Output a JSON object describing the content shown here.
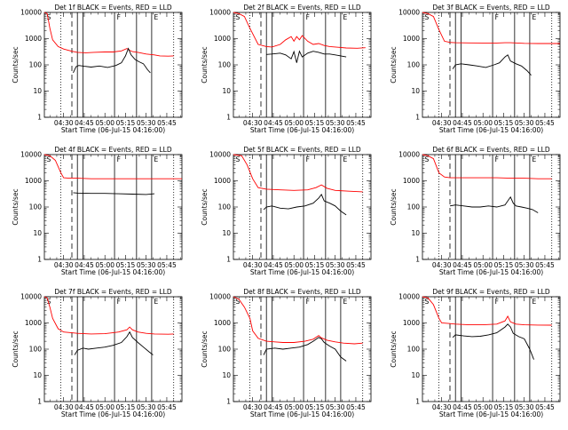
{
  "chart_data": {
    "type": "line",
    "layout": "3x3 grid",
    "ylabel": "Counts/sec",
    "xlabel": "Start Time (06-Jul-15 04:16:00)",
    "y_scale": "log",
    "ylim": [
      1,
      10000
    ],
    "y_ticks": [
      "1",
      "10",
      "100",
      "1000",
      "10000"
    ],
    "x_ticks": [
      "04:30",
      "04:45",
      "05:00",
      "05:15",
      "05:30",
      "05:45"
    ],
    "x_tick_minutes": [
      30,
      45,
      60,
      75,
      90,
      105
    ],
    "xlim_minutes": [
      16,
      116
    ],
    "grid": false,
    "colors": {
      "events": "#000000",
      "lld": "#ff0000"
    },
    "legend_marks": [
      "S",
      "F",
      "E"
    ],
    "markers": {
      "dotted_minutes": [
        28,
        110
      ],
      "dashed_minutes": [
        36
      ],
      "solid_minutes": [
        40,
        44,
        67,
        83,
        94
      ]
    },
    "panels": [
      {
        "title": "Det 1f BLACK = Events, RED = LLD",
        "series": [
          {
            "color": "red",
            "x": [
              16,
              18,
              19,
              20,
              22,
              26,
              30,
              36,
              40,
              46,
              52,
              60,
              66,
              72,
              76,
              78,
              80,
              84,
              90,
              96,
              100,
              106,
              110
            ],
            "y": [
              10000,
              9000,
              5000,
              2500,
              900,
              500,
              400,
              330,
              300,
              290,
              300,
              310,
              310,
              340,
              420,
              360,
              320,
              300,
              260,
              240,
              220,
              215,
              220
            ]
          },
          {
            "color": "black",
            "x": [
              37,
              39,
              41,
              45,
              50,
              56,
              62,
              68,
              72,
              75,
              77,
              79,
              82,
              85,
              88,
              91,
              93
            ],
            "y": [
              50,
              85,
              95,
              88,
              82,
              90,
              80,
              95,
              120,
              220,
              420,
              240,
              160,
              130,
              110,
              65,
              50
            ]
          }
        ]
      },
      {
        "title": "Det 2f BLACK = Events, RED = LLD",
        "series": [
          {
            "color": "red",
            "x": [
              16,
              20,
              24,
              28,
              34,
              40,
              44,
              50,
              54,
              58,
              60,
              62,
              64,
              66,
              70,
              74,
              78,
              82,
              86,
              92,
              98,
              106,
              112
            ],
            "y": [
              10000,
              9000,
              7000,
              2500,
              600,
              500,
              480,
              600,
              900,
              1200,
              800,
              1200,
              900,
              1300,
              800,
              600,
              650,
              550,
              500,
              470,
              440,
              430,
              450
            ]
          },
          {
            "color": "black",
            "x": [
              40,
              44,
              50,
              54,
              58,
              60,
              62,
              64,
              66,
              70,
              74,
              78,
              82,
              86,
              90,
              94,
              98
            ],
            "y": [
              250,
              260,
              280,
              240,
              170,
              320,
              120,
              330,
              200,
              280,
              330,
              300,
              260,
              260,
              240,
              220,
              200
            ]
          }
        ]
      },
      {
        "title": "Det 3f BLACK = Events, RED = LLD",
        "series": [
          {
            "color": "red",
            "x": [
              16,
              20,
              24,
              28,
              32,
              36,
              40,
              50,
              60,
              70,
              76,
              80,
              90,
              100,
              110,
              116
            ],
            "y": [
              10000,
              9000,
              7000,
              2200,
              800,
              720,
              700,
              690,
              680,
              680,
              700,
              700,
              660,
              650,
              650,
              650
            ]
          },
          {
            "color": "black",
            "x": [
              38,
              40,
              44,
              50,
              56,
              62,
              68,
              72,
              76,
              78,
              80,
              84,
              88,
              92,
              95
            ],
            "y": [
              70,
              100,
              110,
              100,
              90,
              80,
              100,
              120,
              200,
              240,
              140,
              110,
              90,
              60,
              40
            ]
          }
        ]
      },
      {
        "title": "Det 4f BLACK = Events, RED = LLD",
        "series": [
          {
            "color": "red",
            "x": [
              16,
              20,
              24,
              28,
              30,
              34,
              40,
              50,
              60,
              70,
              80,
              90,
              100,
              110,
              116
            ],
            "y": [
              10000,
              9000,
              6000,
              2000,
              1300,
              1250,
              1250,
              1200,
              1200,
              1200,
              1200,
              1200,
              1200,
              1200,
              1200
            ]
          },
          {
            "color": "black",
            "x": [
              37,
              40,
              50,
              60,
              70,
              80,
              90,
              96
            ],
            "y": [
              350,
              340,
              330,
              330,
              320,
              310,
              300,
              320
            ]
          }
        ]
      },
      {
        "title": "Det 5f BLACK = Events, RED = LLD",
        "series": [
          {
            "color": "red",
            "x": [
              16,
              22,
              26,
              30,
              34,
              40,
              50,
              60,
              70,
              76,
              80,
              84,
              90,
              100,
              110
            ],
            "y": [
              10000,
              9000,
              4000,
              1200,
              550,
              480,
              450,
              430,
              450,
              550,
              700,
              520,
              430,
              400,
              380
            ]
          },
          {
            "color": "black",
            "x": [
              38,
              40,
              44,
              50,
              56,
              62,
              68,
              74,
              78,
              80,
              82,
              86,
              90,
              94,
              98
            ],
            "y": [
              80,
              100,
              110,
              90,
              85,
              100,
              110,
              140,
              220,
              300,
              170,
              140,
              110,
              70,
              50
            ]
          }
        ]
      },
      {
        "title": "Det 6f BLACK = Events, RED = LLD",
        "series": [
          {
            "color": "red",
            "x": [
              16,
              20,
              24,
              28,
              32,
              36,
              40,
              50,
              60,
              70,
              80,
              90,
              100,
              110
            ],
            "y": [
              10000,
              9000,
              7000,
              2000,
              1400,
              1300,
              1300,
              1300,
              1300,
              1300,
              1250,
              1250,
              1200,
              1200
            ]
          },
          {
            "color": "black",
            "x": [
              36,
              40,
              46,
              52,
              58,
              64,
              70,
              76,
              80,
              82,
              84,
              88,
              92,
              96,
              100
            ],
            "y": [
              110,
              120,
              110,
              100,
              100,
              110,
              100,
              120,
              240,
              140,
              110,
              100,
              90,
              80,
              60
            ]
          }
        ]
      },
      {
        "title": "Det 7f BLACK = Events, RED = LLD",
        "series": [
          {
            "color": "red",
            "x": [
              16,
              18,
              20,
              22,
              26,
              30,
              36,
              40,
              50,
              60,
              70,
              76,
              78,
              80,
              84,
              90,
              96,
              106,
              110
            ],
            "y": [
              10000,
              9000,
              4000,
              1500,
              600,
              450,
              420,
              400,
              380,
              390,
              450,
              550,
              700,
              550,
              450,
              400,
              380,
              370,
              380
            ]
          },
          {
            "color": "black",
            "x": [
              38,
              40,
              44,
              48,
              54,
              60,
              66,
              72,
              76,
              78,
              80,
              84,
              88,
              92,
              95
            ],
            "y": [
              60,
              90,
              110,
              100,
              110,
              120,
              140,
              180,
              300,
              450,
              280,
              180,
              120,
              80,
              60
            ]
          }
        ]
      },
      {
        "title": "Det 8f BLACK = Events, RED = LLD",
        "series": [
          {
            "color": "red",
            "x": [
              16,
              20,
              24,
              28,
              30,
              34,
              40,
              46,
              52,
              60,
              68,
              74,
              78,
              80,
              84,
              90,
              96,
              104,
              110
            ],
            "y": [
              10000,
              8000,
              4000,
              1500,
              500,
              260,
              200,
              190,
              180,
              180,
              200,
              240,
              330,
              270,
              220,
              190,
              170,
              160,
              170
            ]
          },
          {
            "color": "black",
            "x": [
              38,
              40,
              46,
              52,
              58,
              64,
              70,
              74,
              78,
              80,
              82,
              86,
              90,
              94,
              98
            ],
            "y": [
              60,
              100,
              110,
              100,
              110,
              120,
              150,
              200,
              280,
              250,
              180,
              130,
              100,
              50,
              35
            ]
          }
        ]
      },
      {
        "title": "Det 9f BLACK = Events, RED = LLD",
        "series": [
          {
            "color": "red",
            "x": [
              16,
              20,
              24,
              28,
              30,
              36,
              40,
              50,
              60,
              70,
              76,
              78,
              80,
              84,
              90,
              100,
              110
            ],
            "y": [
              10000,
              9000,
              5000,
              1500,
              1000,
              950,
              900,
              850,
              850,
              900,
              1200,
              1800,
              1100,
              900,
              850,
              830,
              820
            ]
          },
          {
            "color": "black",
            "x": [
              38,
              40,
              46,
              52,
              58,
              64,
              70,
              76,
              78,
              80,
              82,
              86,
              90,
              94,
              97
            ],
            "y": [
              280,
              350,
              320,
              300,
              310,
              350,
              420,
              700,
              900,
              700,
              400,
              300,
              250,
              100,
              40
            ]
          }
        ]
      }
    ]
  }
}
